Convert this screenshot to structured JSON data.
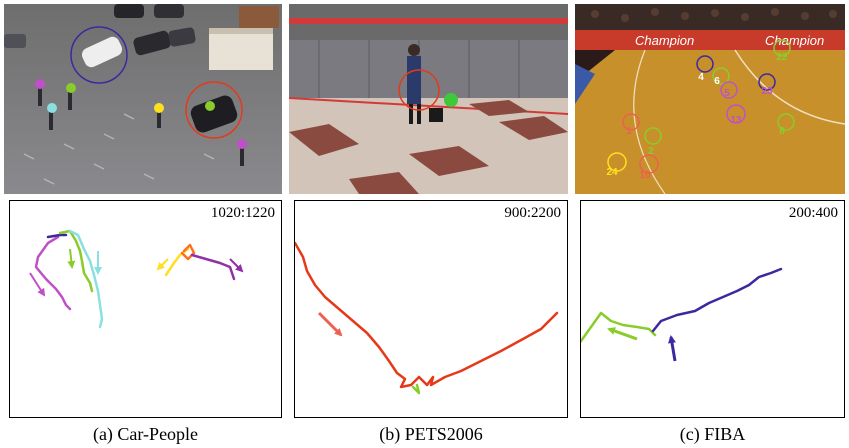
{
  "panels": [
    {
      "caption": "(a) Car-People",
      "frame_range": "1020:1220"
    },
    {
      "caption": "(b) PETS2006",
      "frame_range": "900:2200"
    },
    {
      "caption": "(c) FIBA",
      "frame_range": "200:400"
    }
  ],
  "fiba": {
    "logo_text": "Champion",
    "player_ids": [
      "22",
      "4",
      "6",
      "5",
      "23",
      "13",
      "1",
      "2",
      "8",
      "24",
      "10"
    ]
  },
  "colors": {
    "magenta": "#c050c8",
    "green": "#8acc2a",
    "cyan": "#8ae0e0",
    "navy": "#3a2aa0",
    "yellow": "#ffe020",
    "orange": "#ff7020",
    "purple": "#9030a8",
    "red": "#e43a1a",
    "salmon": "#ee6050"
  }
}
